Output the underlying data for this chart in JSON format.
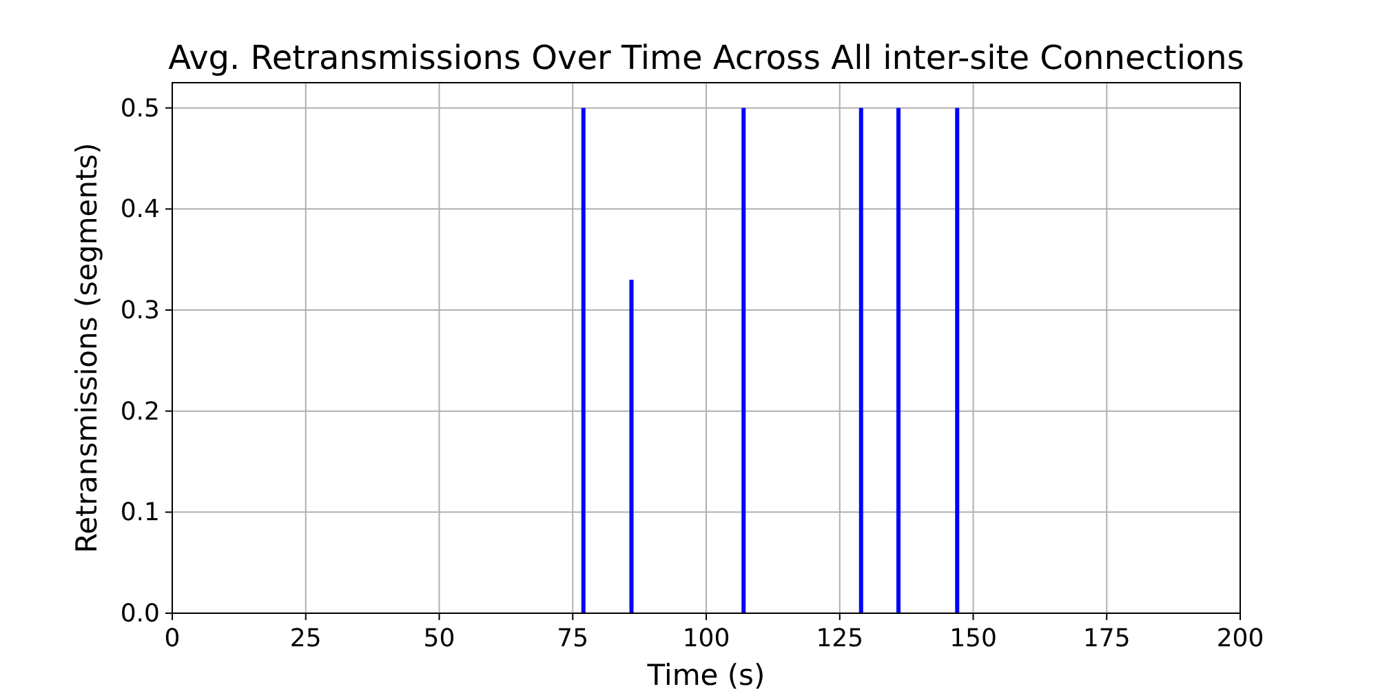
{
  "chart_data": {
    "type": "bar",
    "title": "Avg. Retransmissions Over Time Across All inter-site Connections",
    "xlabel": "Time (s)",
    "ylabel": "Retransmissions (segments)",
    "x": [
      77,
      86,
      107,
      129,
      136,
      147
    ],
    "values": [
      0.5,
      0.33,
      0.5,
      0.5,
      0.5,
      0.5
    ],
    "color": "#0000ff",
    "xlim": [
      0,
      200
    ],
    "xticks": [
      0,
      25,
      50,
      75,
      100,
      125,
      150,
      175,
      200
    ],
    "ylim": [
      0,
      0.525
    ],
    "yticks": [
      {
        "value": 0,
        "label": "0.0"
      },
      0.1,
      0.2,
      0.3,
      0.4,
      0.5
    ],
    "grid": true
  }
}
